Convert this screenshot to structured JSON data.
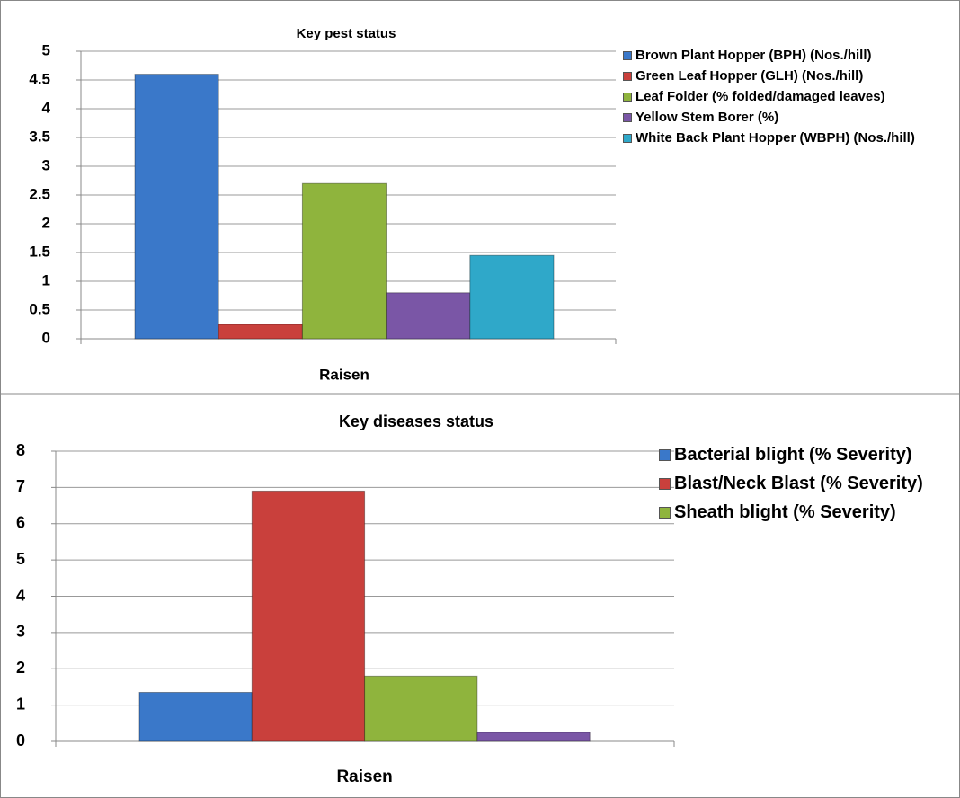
{
  "chart_data": [
    {
      "type": "bar",
      "title": "Key pest status",
      "categories": [
        "Raisen"
      ],
      "ylim": [
        0,
        5
      ],
      "yticks": [
        0,
        0.5,
        1,
        1.5,
        2,
        2.5,
        3,
        3.5,
        4,
        4.5,
        5
      ],
      "grid": true,
      "series": [
        {
          "name": "Brown Plant Hopper (BPH) (Nos./hill)",
          "color": "#3a78c9",
          "values": [
            4.6
          ]
        },
        {
          "name": "Green Leaf Hopper (GLH) (Nos./hill)",
          "color": "#c9403c",
          "values": [
            0.25
          ]
        },
        {
          "name": "Leaf Folder (% folded/damaged leaves)",
          "color": "#8fb43d",
          "values": [
            2.7
          ]
        },
        {
          "name": "Yellow Stem Borer (%)",
          "color": "#7a56a6",
          "values": [
            0.8
          ]
        },
        {
          "name": "White Back Plant Hopper (WBPH) (Nos./hill)",
          "color": "#2fa8c9",
          "values": [
            1.45
          ]
        }
      ]
    },
    {
      "type": "bar",
      "title": "Key diseases status",
      "categories": [
        "Raisen"
      ],
      "ylim": [
        0,
        8
      ],
      "yticks": [
        0,
        1,
        2,
        3,
        4,
        5,
        6,
        7,
        8
      ],
      "grid": true,
      "series": [
        {
          "name": "Bacterial blight (% Severity)",
          "color": "#3a78c9",
          "values": [
            1.35
          ]
        },
        {
          "name": "Blast/Neck Blast (% Severity)",
          "color": "#c9403c",
          "values": [
            6.9
          ]
        },
        {
          "name": "Sheath blight (% Severity)",
          "color": "#8fb43d",
          "values": [
            1.8
          ]
        },
        {
          "color": "#7a56a6",
          "values": [
            0.25
          ]
        }
      ]
    }
  ]
}
